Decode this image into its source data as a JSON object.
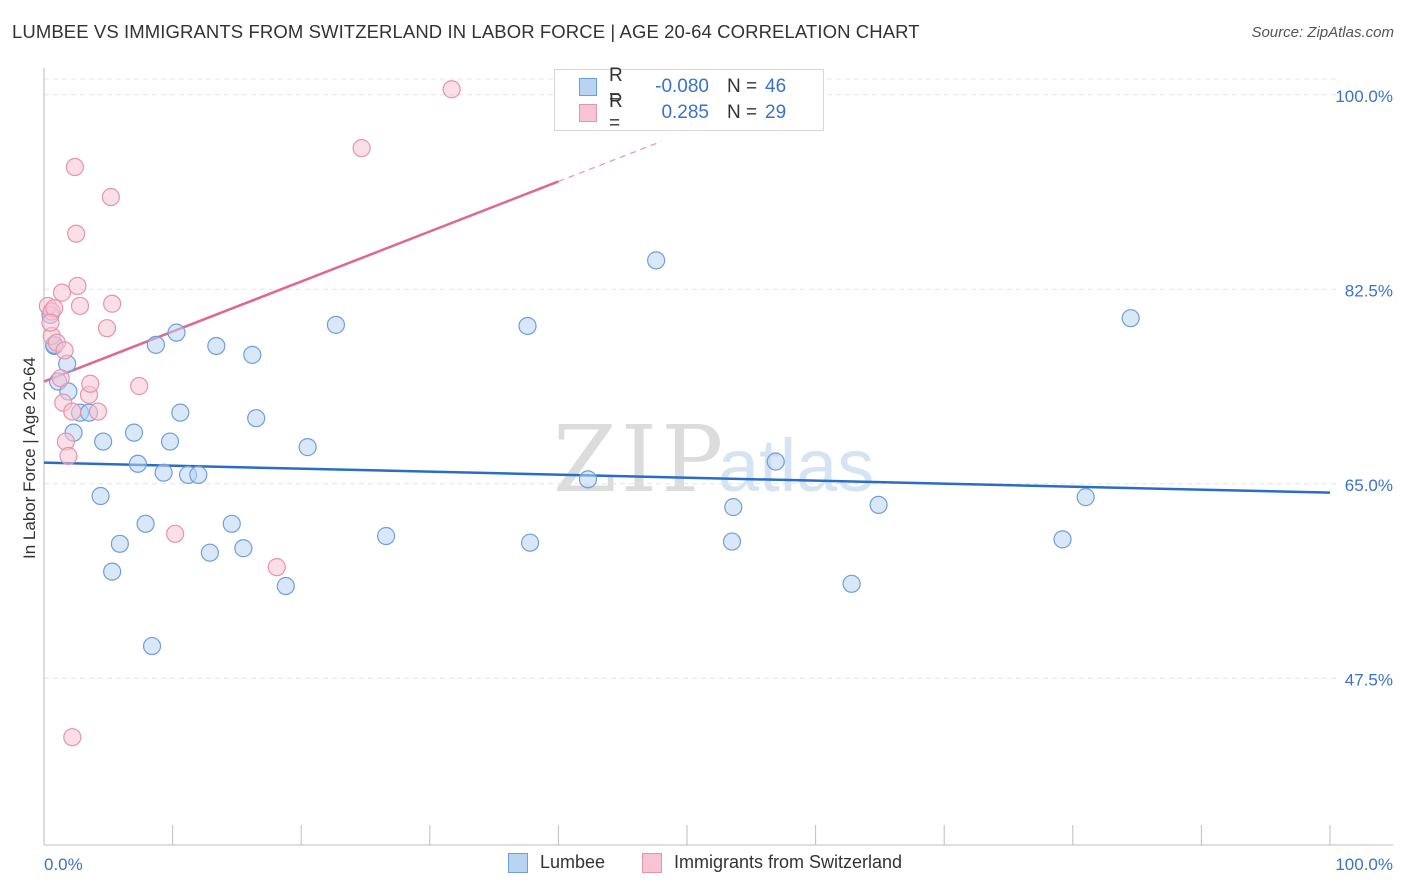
{
  "title": "LUMBEE VS IMMIGRANTS FROM SWITZERLAND IN LABOR FORCE | AGE 20-64 CORRELATION CHART",
  "source": "Source: ZipAtlas.com",
  "watermark": {
    "zip": "ZIP",
    "atlas": "atlas"
  },
  "legend": {
    "r_label": "R =",
    "n_label": "N =",
    "rows": [
      {
        "name": "Lumbee",
        "r": "-0.080",
        "n": "46"
      },
      {
        "name": "Immigrants from Switzerland",
        "r": "0.285",
        "n": "29"
      }
    ]
  },
  "colors": {
    "lumbee_fill": "#b9d3f3",
    "lumbee_stroke": "#6f9fd8",
    "lumbee_line": "#2a6dc8",
    "swiss_fill": "#f8c4d3",
    "swiss_stroke": "#e693ad",
    "swiss_line": "#e0678f",
    "tick_label": "#3b72c7",
    "grid": "#e4e4e4"
  },
  "chart_data": {
    "type": "scatter",
    "title": "LUMBEE VS IMMIGRANTS FROM SWITZERLAND IN LABOR FORCE | AGE 20-64 CORRELATION CHART",
    "xlabel": "",
    "ylabel": "In Labor Force | Age 20-64",
    "xlim": [
      0,
      100
    ],
    "ylim": [
      32.5,
      102.5
    ],
    "x_tick_labels": [
      "0.0%",
      "100.0%"
    ],
    "y_ticks": [
      47.5,
      65.0,
      82.5,
      100.0
    ],
    "y_tick_labels": [
      "47.5%",
      "65.0%",
      "82.5%",
      "100.0%"
    ],
    "grid": true,
    "legend_position": "top-center",
    "series": [
      {
        "name": "Lumbee",
        "r": -0.08,
        "n": 46,
        "trend": {
          "x": [
            0,
            100
          ],
          "y": [
            66.9,
            64.2
          ]
        },
        "points": [
          [
            0.5,
            80.2
          ],
          [
            0.8,
            77.4
          ],
          [
            1.1,
            74.2
          ],
          [
            1.8,
            75.8
          ],
          [
            1.9,
            73.3
          ],
          [
            2.3,
            69.6
          ],
          [
            2.8,
            71.4
          ],
          [
            3.5,
            71.4
          ],
          [
            4.4,
            63.9
          ],
          [
            4.6,
            68.8
          ],
          [
            5.3,
            57.1
          ],
          [
            5.9,
            59.6
          ],
          [
            7.0,
            69.6
          ],
          [
            7.3,
            66.8
          ],
          [
            7.9,
            61.4
          ],
          [
            8.4,
            50.4
          ],
          [
            8.7,
            77.5
          ],
          [
            9.3,
            66.0
          ],
          [
            9.8,
            68.8
          ],
          [
            10.3,
            78.6
          ],
          [
            10.6,
            71.4
          ],
          [
            11.2,
            65.8
          ],
          [
            12.0,
            65.8
          ],
          [
            12.9,
            58.8
          ],
          [
            13.4,
            77.4
          ],
          [
            14.6,
            61.4
          ],
          [
            15.5,
            59.2
          ],
          [
            16.2,
            76.6
          ],
          [
            16.5,
            70.9
          ],
          [
            18.8,
            55.8
          ],
          [
            20.5,
            68.3
          ],
          [
            22.7,
            79.3
          ],
          [
            26.6,
            60.3
          ],
          [
            37.8,
            59.7
          ],
          [
            37.6,
            79.2
          ],
          [
            42.3,
            65.4
          ],
          [
            47.6,
            85.1
          ],
          [
            53.5,
            59.8
          ],
          [
            53.6,
            62.9
          ],
          [
            56.9,
            67.0
          ],
          [
            62.8,
            56.0
          ],
          [
            64.9,
            63.1
          ],
          [
            79.2,
            60.0
          ],
          [
            81.0,
            63.8
          ],
          [
            84.5,
            79.9
          ],
          [
            0.8,
            77.5
          ]
        ]
      },
      {
        "name": "Immigrants from Switzerland",
        "r": 0.285,
        "n": 29,
        "trend": {
          "x": [
            0,
            40
          ],
          "y": [
            74.2,
            92.2
          ]
        },
        "trend_dashed": {
          "x": [
            40,
            48
          ],
          "y": [
            92.2,
            95.8
          ]
        },
        "points": [
          [
            0.3,
            81.0
          ],
          [
            0.6,
            80.5
          ],
          [
            0.6,
            78.3
          ],
          [
            0.8,
            80.8
          ],
          [
            1.0,
            77.7
          ],
          [
            1.3,
            74.5
          ],
          [
            1.4,
            82.2
          ],
          [
            1.5,
            72.3
          ],
          [
            1.6,
            77.0
          ],
          [
            1.7,
            68.8
          ],
          [
            1.9,
            67.5
          ],
          [
            2.2,
            71.5
          ],
          [
            2.4,
            93.5
          ],
          [
            2.5,
            87.5
          ],
          [
            2.6,
            82.8
          ],
          [
            2.8,
            81.0
          ],
          [
            3.5,
            73.0
          ],
          [
            3.6,
            74.0
          ],
          [
            4.2,
            71.5
          ],
          [
            4.9,
            79.0
          ],
          [
            5.2,
            90.8
          ],
          [
            5.3,
            81.2
          ],
          [
            7.4,
            73.8
          ],
          [
            10.2,
            60.5
          ],
          [
            18.1,
            57.5
          ],
          [
            24.7,
            95.2
          ],
          [
            31.7,
            100.5
          ],
          [
            2.2,
            42.2
          ],
          [
            0.5,
            79.5
          ]
        ]
      }
    ]
  }
}
